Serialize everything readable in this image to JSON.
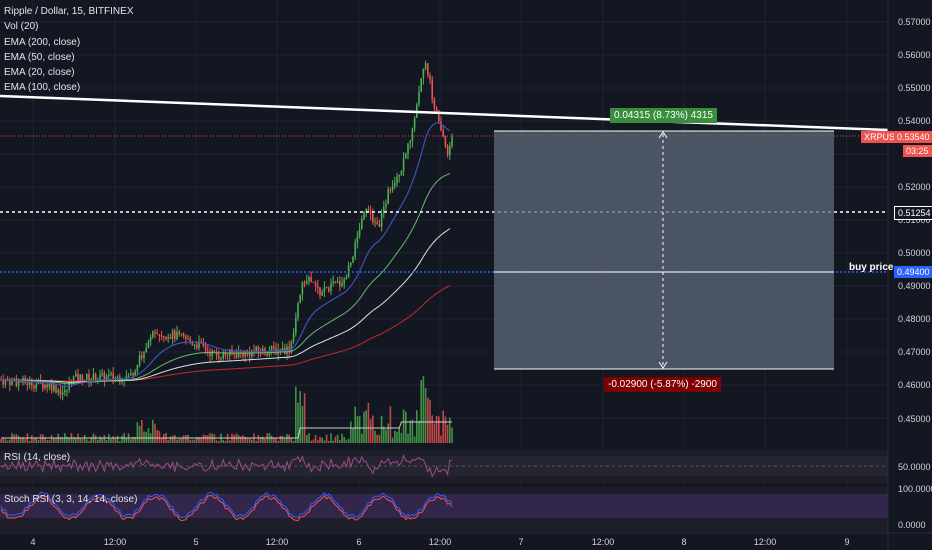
{
  "header": {
    "title": "Ripple / Dollar, 15, BITFINEX",
    "indicators": [
      "Vol (20)",
      "EMA (200, close)",
      "EMA (50, close)",
      "EMA (20, close)",
      "EMA (100, close)"
    ]
  },
  "symbol": {
    "name": "XRPUSD",
    "price": "0.53540",
    "countdown": "03:25"
  },
  "price_axis": {
    "ticks": [
      "0.57000",
      "0.56000",
      "0.55000",
      "0.54000",
      "0.52000",
      "0.51000",
      "0.50000",
      "0.49000",
      "0.48000",
      "0.47000",
      "0.46000",
      "0.45000"
    ]
  },
  "price_levels": [
    {
      "value": "0.51254",
      "label": "",
      "color": "#ffffff",
      "dash": "3,3"
    },
    {
      "value": "0.49400",
      "label": "buy price",
      "color": "#2962ff",
      "dash": "2,2"
    }
  ],
  "position_tool": {
    "profit_label": "0.04315 (8.73%) 4315",
    "loss_label": "-0.02900 (-5.87%) -2900",
    "profit_color": "#388e3c",
    "loss_color": "#7f0000"
  },
  "rsi_pane": {
    "label": "RSI (14, close)",
    "ticks": [
      "50.0000"
    ]
  },
  "stoch_pane": {
    "label": "Stoch RSI (3, 3, 14, 14, close)",
    "ticks": [
      "100.0000",
      "0.0000"
    ]
  },
  "time_axis": {
    "ticks": [
      "4",
      "12:00",
      "5",
      "12:00",
      "6",
      "12:00",
      "7",
      "12:00",
      "8",
      "12:00",
      "9"
    ]
  },
  "colors": {
    "background": "#131722",
    "up": "#26a69a",
    "up_candle": "#4caf50",
    "down": "#ef5350",
    "ema20": "#3f51b5",
    "ema50": "#66bb6a",
    "ema100": "#ffffff",
    "ema200": "#c62828",
    "trendline": "#ffffff"
  }
}
